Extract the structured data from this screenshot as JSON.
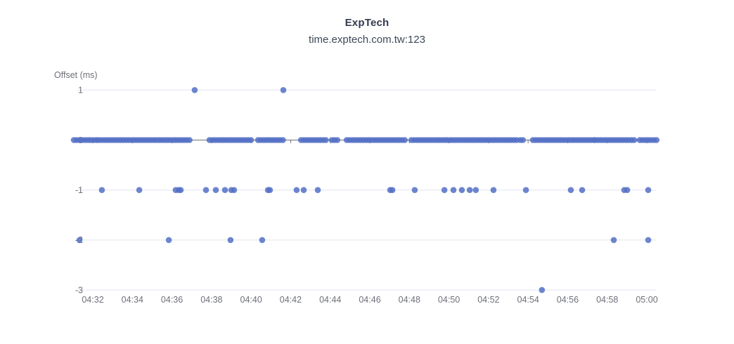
{
  "chart_data": {
    "type": "scatter",
    "title": "ExpTech",
    "subtitle": "time.exptech.com.tw:123",
    "ylabel": "Offset (ms)",
    "legend": null,
    "grid_on": true,
    "time_base_hour": "04:00",
    "x_tick_labels": [
      "04:32",
      "04:34",
      "04:36",
      "04:38",
      "04:40",
      "04:42",
      "04:44",
      "04:46",
      "04:48",
      "04:50",
      "04:52",
      "04:54",
      "04:56",
      "04:58",
      "05:00"
    ],
    "x_tick_minutes": [
      32,
      34,
      36,
      38,
      40,
      42,
      44,
      46,
      48,
      50,
      52,
      54,
      56,
      58,
      60
    ],
    "x_range_minutes": [
      31.0,
      60.7
    ],
    "y_ticks": [
      1,
      0,
      -1,
      -2,
      -3
    ],
    "ylim": [
      -3,
      1
    ],
    "point_color": "#5470C6",
    "point_opacity": 0.85,
    "grid_color": "#E0E6F1",
    "axis_color": "#6E7079",
    "text_color": "#6E7079",
    "title_color": "#333B4E",
    "subtitle_color": "#3C4858",
    "series_name": "offset_ms",
    "offset_plus1_minutes": [
      37.15,
      41.63
    ],
    "offset_zero_cluster_ranges_minutes": [
      [
        31.04,
        31.22
      ],
      [
        31.33,
        32.18
      ],
      [
        32.28,
        36.12
      ],
      [
        36.19,
        37.01
      ],
      [
        37.9,
        40.03
      ],
      [
        40.35,
        41.7
      ],
      [
        42.52,
        43.9
      ],
      [
        44.08,
        44.47
      ],
      [
        44.83,
        47.81
      ],
      [
        48.1,
        50.69
      ],
      [
        50.76,
        53.43
      ],
      [
        53.6,
        53.85
      ],
      [
        54.24,
        57.33
      ],
      [
        57.4,
        59.36
      ],
      [
        59.64,
        60.25
      ],
      [
        60.35,
        60.56
      ]
    ],
    "offset_zero_sample_interval_minutes": 0.14,
    "offset_minus1_minutes": [
      32.46,
      34.35,
      36.19,
      36.34,
      36.44,
      37.72,
      38.22,
      38.68,
      39.0,
      39.14,
      40.85,
      40.95,
      42.3,
      42.66,
      43.37,
      47.03,
      47.14,
      48.27,
      49.77,
      50.23,
      50.65,
      51.05,
      51.36,
      52.25,
      53.89,
      56.16,
      56.73,
      58.86,
      59.01,
      60.07
    ],
    "offset_minus2_minutes": [
      31.33,
      35.84,
      38.96,
      40.56,
      58.33,
      60.07
    ],
    "offset_minus3_minutes": [
      54.7
    ]
  }
}
